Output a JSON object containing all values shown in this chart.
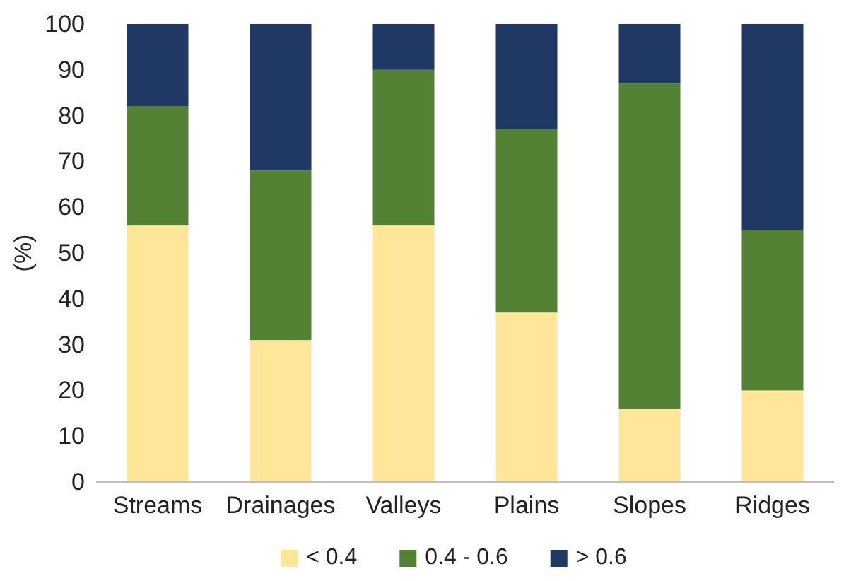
{
  "chart_data": {
    "type": "bar",
    "stacked": true,
    "ylabel": "(%)",
    "categories": [
      "Streams",
      "Drainages",
      "Valleys",
      "Plains",
      "Slopes",
      "Ridges"
    ],
    "series": [
      {
        "name": "< 0.4",
        "color": "#ffe699",
        "values": [
          56,
          31,
          56,
          37,
          16,
          20
        ]
      },
      {
        "name": "0.4 - 0.6",
        "color": "#548235",
        "values": [
          26,
          37,
          34,
          40,
          71,
          35
        ]
      },
      {
        "name": "> 0.6",
        "color": "#203864",
        "values": [
          18,
          32,
          10,
          23,
          13,
          45
        ]
      }
    ],
    "ylim": [
      0,
      100
    ],
    "yticks": [
      0,
      10,
      20,
      30,
      40,
      50,
      60,
      70,
      80,
      90,
      100
    ],
    "grid": false,
    "legend": "bottom"
  }
}
